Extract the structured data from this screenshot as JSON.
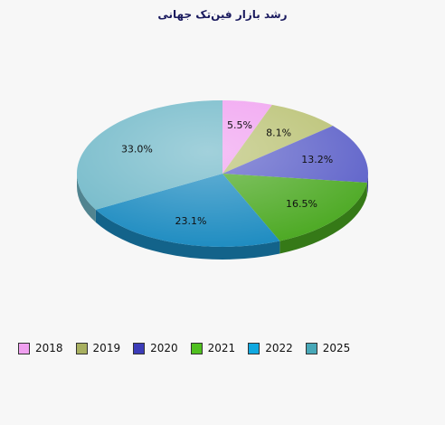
{
  "chart_data": {
    "type": "pie",
    "title": "رشد بازار فین‌تک جهانی",
    "categories": [
      "2018",
      "2019",
      "2020",
      "2021",
      "2022",
      "2025"
    ],
    "values": [
      5.5,
      8.1,
      13.2,
      16.5,
      23.1,
      33.0
    ],
    "labels": [
      "5.5%",
      "8.1%",
      "13.2%",
      "16.5%",
      "23.1%",
      "33.0%"
    ],
    "colors": [
      "#f0a0f0",
      "#b8c070",
      "#5a5ec8",
      "#4aa820",
      "#1a8ac0",
      "#70b8c8"
    ],
    "legend_colors": [
      "#f0a0f0",
      "#a8b060",
      "#3c3cb8",
      "#50c020",
      "#10a8e0",
      "#48a8b8"
    ],
    "legend_position": "bottom-left",
    "style": "3d"
  }
}
